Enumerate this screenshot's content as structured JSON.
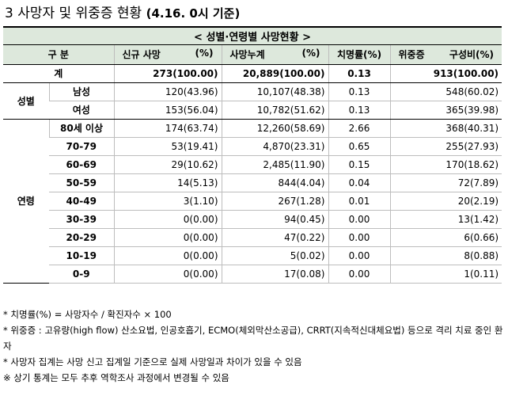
{
  "title": {
    "main": "3 사망자 및 위중증 현황",
    "sub": "(4.16. 0시 기준)"
  },
  "table": {
    "banner": "< 성별·연령별 사망현황 >",
    "header": {
      "category": "구 분",
      "new_deaths": "신규 사망",
      "new_deaths_unit": "(%)",
      "cumulative_deaths": "사망누계",
      "cumulative_deaths_unit": "(%)",
      "fatality_rate": "치명률(%)",
      "severe": "위중증",
      "severe_share": "구성비(%)"
    },
    "total": {
      "label": "계",
      "new_deaths": "273(100.00)",
      "cumulative": "20,889(100.00)",
      "rate": "0.13",
      "severe": "913(100.00)"
    },
    "sex_group": "성별",
    "sex_rows": [
      {
        "label": "남성",
        "new_deaths": "120(43.96)",
        "cumulative": "10,107(48.38)",
        "rate": "0.13",
        "severe": "548(60.02)"
      },
      {
        "label": "여성",
        "new_deaths": "153(56.04)",
        "cumulative": "10,782(51.62)",
        "rate": "0.13",
        "severe": "365(39.98)"
      }
    ],
    "age_group": "연령",
    "age_rows": [
      {
        "label": "80세 이상",
        "new_deaths": "174(63.74)",
        "cumulative": "12,260(58.69)",
        "rate": "2.66",
        "severe": "368(40.31)"
      },
      {
        "label": "70-79",
        "new_deaths": "53(19.41)",
        "cumulative": "4,870(23.31)",
        "rate": "0.65",
        "severe": "255(27.93)"
      },
      {
        "label": "60-69",
        "new_deaths": "29(10.62)",
        "cumulative": "2,485(11.90)",
        "rate": "0.15",
        "severe": "170(18.62)"
      },
      {
        "label": "50-59",
        "new_deaths": "14(5.13)",
        "cumulative": "844(4.04)",
        "rate": "0.04",
        "severe": "72(7.89)"
      },
      {
        "label": "40-49",
        "new_deaths": "3(1.10)",
        "cumulative": "267(1.28)",
        "rate": "0.01",
        "severe": "20(2.19)"
      },
      {
        "label": "30-39",
        "new_deaths": "0(0.00)",
        "cumulative": "94(0.45)",
        "rate": "0.00",
        "severe": "13(1.42)"
      },
      {
        "label": "20-29",
        "new_deaths": "0(0.00)",
        "cumulative": "47(0.22)",
        "rate": "0.00",
        "severe": "6(0.66)"
      },
      {
        "label": "10-19",
        "new_deaths": "0(0.00)",
        "cumulative": "5(0.02)",
        "rate": "0.00",
        "severe": "8(0.88)"
      },
      {
        "label": "0-9",
        "new_deaths": "0(0.00)",
        "cumulative": "17(0.08)",
        "rate": "0.00",
        "severe": "1(0.11)"
      }
    ]
  },
  "notes": [
    "* 치명률(%) = 사망자수 / 확진자수 × 100",
    "* 위중증 : 고유량(high flow) 산소요법, 인공호흡기, ECMO(체외막산소공급), CRRT(지속적신대체요법) 등으로 격리 치료 중인 환자",
    "* 사망자 집계는 사망 신고 집계일 기준으로 실제 사망일과 차이가 있을 수 있음",
    "※ 상기 통계는 모두 추후 역학조사 과정에서 변경될 수 있음"
  ]
}
